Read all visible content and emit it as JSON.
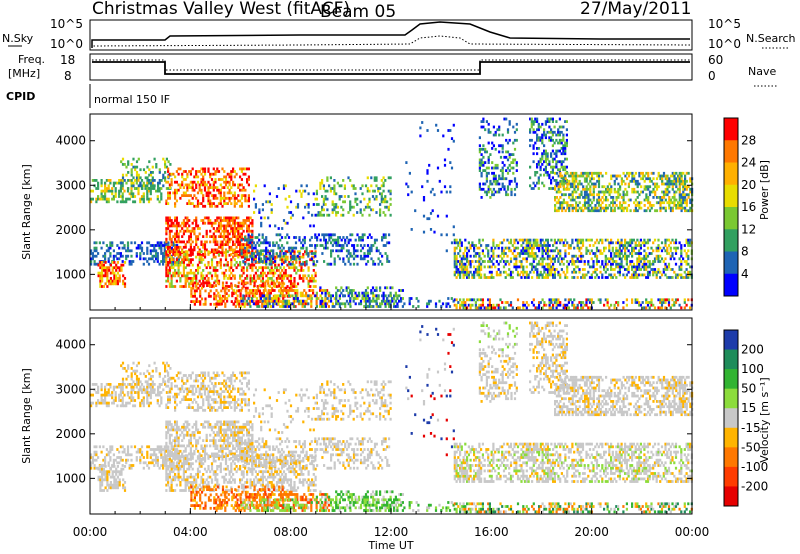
{
  "header": {
    "title": "Christmas Valley West (fitACF)",
    "beam": "Beam 05",
    "date": "27/May/2011"
  },
  "params_panel": {
    "nsky_label": "N.Sky",
    "nsearch_label": "N.Search",
    "nsky_ticks": [
      "10^5",
      "10^0"
    ],
    "nsearch_ticks": [
      "10^5",
      "10^0"
    ],
    "freq_label_1": "Freq.",
    "freq_label_2": "[MHz]",
    "freq_ticks": [
      "18",
      "8"
    ],
    "nave_label": "Nave",
    "nave_ticks": [
      "60",
      "0"
    ],
    "cpid_label": "CPID",
    "cpid_value": "normal 150 IF"
  },
  "chart_data": [
    {
      "type": "heatmap",
      "name": "power",
      "ylabel": "Slant Range [km]",
      "yticks": [
        1000,
        2000,
        3000,
        4000
      ],
      "ylim": [
        200,
        4600
      ],
      "xlim": [
        0,
        24
      ],
      "colorbar": {
        "label": "Power [dB]",
        "ticks": [
          "28",
          "24",
          "20",
          "16",
          "12",
          "8",
          "4"
        ],
        "colors": [
          "#ff0000",
          "#ff7800",
          "#ffb000",
          "#e8dc00",
          "#7ac832",
          "#32a060",
          "#1e64b4",
          "#0000ff"
        ]
      }
    },
    {
      "type": "heatmap",
      "name": "velocity",
      "ylabel": "Slant Range [km]",
      "yticks": [
        1000,
        2000,
        3000,
        4000
      ],
      "ylim": [
        200,
        4600
      ],
      "xlim": [
        0,
        24
      ],
      "xlabel": "Time UT",
      "xticks": [
        "00:00",
        "04:00",
        "08:00",
        "12:00",
        "16:00",
        "20:00",
        "00:00"
      ],
      "colorbar": {
        "label": "Velocity [m s⁻¹]",
        "ticks": [
          "200",
          "100",
          "50",
          "15",
          "-15",
          "-50",
          "-100",
          "-200"
        ],
        "colors": [
          "#1e3caa",
          "#1e8c5a",
          "#32b432",
          "#8cdc3c",
          "#c8c8c8",
          "#ffb400",
          "#ff7800",
          "#ff3c00",
          "#e60000"
        ]
      }
    }
  ]
}
